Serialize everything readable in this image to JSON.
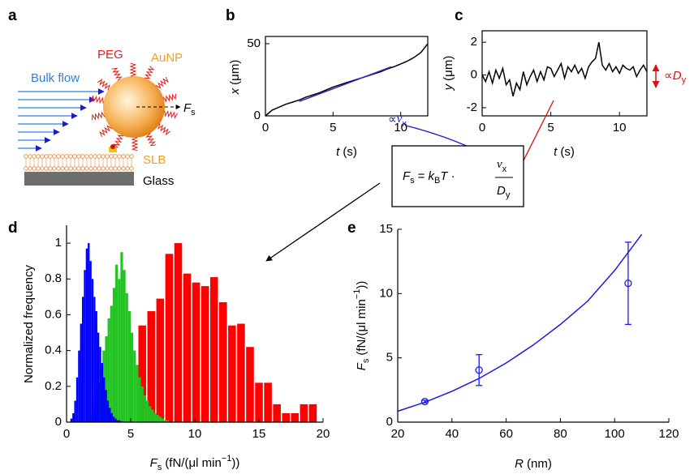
{
  "panels": {
    "a": "a",
    "b": "b",
    "c": "c",
    "d": "d",
    "e": "e"
  },
  "diagram": {
    "flow": "Bulk flow",
    "peg": "PEG",
    "aunp": "AuNP",
    "force": "F",
    "force_sub": "s",
    "slb": "SLB",
    "glass": "Glass",
    "prop_vx": "∝",
    "vx": "v",
    "vx_sub": "x",
    "prop_dy": "∝",
    "dy": "D",
    "dy_sub": "y"
  },
  "formula": {
    "lhs": "F",
    "lhs_sub": "s",
    "eq": "=",
    "k": "k",
    "k_sub": "B",
    "t": "T ·",
    "num": "v",
    "num_sub": "x",
    "den": "D",
    "den_sub": "y"
  },
  "chart_data": [
    {
      "type": "line",
      "xlabel": [
        "t",
        "(s)"
      ],
      "ylabel": [
        "x",
        "(μm)"
      ],
      "xlim": [
        0,
        12
      ],
      "ylim": [
        0,
        55
      ],
      "xticks": [
        0,
        5,
        10
      ],
      "yticks": [
        0,
        50
      ],
      "series": [
        {
          "color": "#000000",
          "x": [
            0,
            0.5,
            1,
            1.5,
            2,
            2.5,
            3,
            3.5,
            4,
            4.5,
            5,
            5.5,
            6,
            6.5,
            7,
            7.5,
            8,
            8.5,
            9,
            9.5,
            10,
            10.5,
            11,
            11.5,
            12
          ],
          "values": [
            0,
            4,
            6,
            8,
            9.5,
            11,
            13,
            14.5,
            16,
            18,
            20,
            21.5,
            23,
            24.5,
            26,
            27.5,
            29,
            30.5,
            32.5,
            34,
            36,
            38,
            40.5,
            44,
            50
          ]
        },
        {
          "color": "#2a2ad0",
          "x": [
            2.5,
            9.3
          ],
          "values": [
            10,
            34
          ]
        }
      ]
    },
    {
      "type": "line",
      "xlabel": [
        "t",
        "(s)"
      ],
      "ylabel": [
        "y",
        "(μm)"
      ],
      "xlim": [
        0,
        12
      ],
      "ylim": [
        -2.5,
        2.7
      ],
      "xticks": [
        0,
        5,
        10
      ],
      "yticks": [
        -2,
        0,
        2
      ],
      "series": [
        {
          "color": "#000000",
          "x": [
            0,
            0.25,
            0.5,
            0.75,
            1,
            1.25,
            1.5,
            1.75,
            2,
            2.25,
            2.5,
            2.75,
            3,
            3.25,
            3.5,
            3.75,
            4,
            4.25,
            4.5,
            4.75,
            5,
            5.25,
            5.5,
            5.75,
            6,
            6.25,
            6.5,
            6.75,
            7,
            7.25,
            7.5,
            7.75,
            8,
            8.25,
            8.5,
            8.75,
            9,
            9.25,
            9.5,
            9.75,
            10,
            10.25,
            10.5,
            10.75,
            11,
            11.25,
            11.5,
            11.75,
            12
          ],
          "values": [
            0,
            -0.4,
            0.2,
            -0.5,
            0.3,
            -0.2,
            0.4,
            -0.6,
            -0.3,
            -1.3,
            -0.5,
            -0.9,
            0.2,
            -0.6,
            -0.1,
            0.3,
            -0.4,
            0.2,
            -0.3,
            0.5,
            0.4,
            -0.1,
            0.3,
            0.7,
            -0.2,
            0.5,
            0.2,
            0.6,
            0.1,
            0.4,
            -0.2,
            0.5,
            0.8,
            1.0,
            2.0,
            0.6,
            0.3,
            0.7,
            0.2,
            0.5,
            0.1,
            0.6,
            0.4,
            0.3,
            0.5,
            -0.1,
            0.3,
            0.6,
            0.2
          ]
        }
      ]
    },
    {
      "type": "histogram",
      "xlabel": [
        "F",
        "s",
        "(fN/(μl min",
        "−1",
        "))"
      ],
      "ylabel": [
        "Normalized frequency"
      ],
      "xlim": [
        0,
        20
      ],
      "ylim": [
        0,
        1.1
      ],
      "xticks": [
        0,
        5,
        10,
        15,
        20
      ],
      "yticks": [
        0,
        0.2,
        0.4,
        0.6,
        0.8,
        1
      ],
      "series": [
        {
          "color": "#ff0000",
          "bins": [
            5.6,
            6.3,
            7.0,
            7.7,
            8.4,
            9.1,
            9.8,
            10.5,
            11.2,
            11.9,
            12.6,
            13.3,
            14.0,
            14.7,
            15.4,
            16.1,
            16.8,
            17.5,
            18.2,
            18.9,
            19.6
          ],
          "values": [
            0.54,
            0.62,
            0.69,
            0.94,
            1.0,
            0.83,
            0.78,
            0.76,
            0.81,
            0.67,
            0.54,
            0.55,
            0.42,
            0.22,
            0.22,
            0.1,
            0.05,
            0.05,
            0.1,
            0.1
          ]
        },
        {
          "color": "#22c422",
          "bins": [
            1.6,
            1.8,
            2.0,
            2.2,
            2.4,
            2.6,
            2.8,
            3.0,
            3.2,
            3.4,
            3.6,
            3.8,
            4.0,
            4.2,
            4.4,
            4.6,
            4.8,
            5.0,
            5.2,
            5.4,
            5.6,
            5.8,
            6.0,
            6.2,
            6.4,
            6.6,
            6.8,
            7.0,
            7.2,
            7.4,
            7.6,
            7.8,
            8.0
          ],
          "values": [
            0.02,
            0.04,
            0.08,
            0.14,
            0.22,
            0.3,
            0.4,
            0.48,
            0.58,
            0.65,
            0.75,
            0.88,
            0.8,
            0.95,
            0.85,
            0.72,
            0.62,
            0.5,
            0.4,
            0.32,
            0.25,
            0.2,
            0.15,
            0.12,
            0.09,
            0.07,
            0.05,
            0.04,
            0.03,
            0.02,
            0.01,
            0.01
          ]
        },
        {
          "color": "#0000ff",
          "bins": [
            0.3,
            0.45,
            0.6,
            0.75,
            0.9,
            1.05,
            1.2,
            1.35,
            1.5,
            1.65,
            1.8,
            1.95,
            2.1,
            2.25,
            2.4,
            2.55,
            2.7,
            2.85,
            3.0,
            3.15,
            3.3,
            3.45,
            3.6,
            3.75,
            3.9,
            4.05,
            4.2,
            4.35,
            4.5
          ],
          "values": [
            0.02,
            0.05,
            0.12,
            0.25,
            0.4,
            0.55,
            0.7,
            0.85,
            0.97,
            1.0,
            0.9,
            0.8,
            0.7,
            0.62,
            0.5,
            0.42,
            0.33,
            0.25,
            0.18,
            0.12,
            0.08,
            0.05,
            0.03,
            0.02,
            0.01,
            0.01,
            0.005,
            0
          ]
        }
      ]
    },
    {
      "type": "scatter",
      "xlabel": [
        "R",
        "(nm)"
      ],
      "ylabel": [
        "F",
        "s",
        "(fN/(μl min",
        "−1",
        "))"
      ],
      "xlim": [
        20,
        120
      ],
      "ylim": [
        0,
        15
      ],
      "xticks": [
        20,
        40,
        60,
        80,
        100,
        120
      ],
      "yticks": [
        0,
        5,
        10,
        15
      ],
      "series": [
        {
          "color": "#1a1ae6",
          "x": [
            20,
            30,
            40,
            50,
            60,
            70,
            80,
            90,
            100,
            110
          ],
          "values": [
            0.85,
            1.55,
            2.4,
            3.4,
            4.6,
            6.0,
            7.6,
            9.4,
            11.8,
            14.6
          ]
        },
        {
          "color": "#1a1ae6",
          "x": [
            30,
            50,
            105
          ],
          "values": [
            1.6,
            4.05,
            10.8
          ],
          "errors": [
            0.1,
            1.2,
            3.2
          ]
        }
      ]
    }
  ]
}
